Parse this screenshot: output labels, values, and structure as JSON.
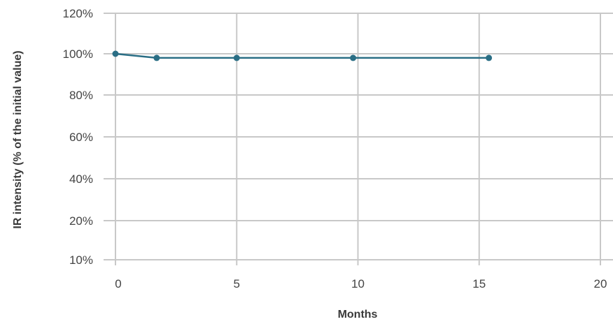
{
  "chart_data": {
    "type": "line",
    "title": "",
    "xlabel": "Months",
    "ylabel": "IR intensity (% of the initial value)",
    "x_ticks": [
      0,
      5,
      10,
      15,
      20
    ],
    "y_ticks": [
      10,
      20,
      40,
      60,
      80,
      100,
      120
    ],
    "y_tick_labels": [
      "10%",
      "20%",
      "40%",
      "60%",
      "80%",
      "100%",
      "120%"
    ],
    "xlim": [
      0,
      20
    ],
    "ylim": [
      10,
      120
    ],
    "grid": true,
    "legend": "none",
    "series": [
      {
        "x": [
          0,
          1.7,
          5,
          9.8,
          15.4
        ],
        "y": [
          100,
          98,
          98,
          98,
          98
        ],
        "color": "#2a6e85"
      }
    ]
  },
  "colors": {
    "grid": "#c8c8c8",
    "line": "#2a6e85"
  }
}
